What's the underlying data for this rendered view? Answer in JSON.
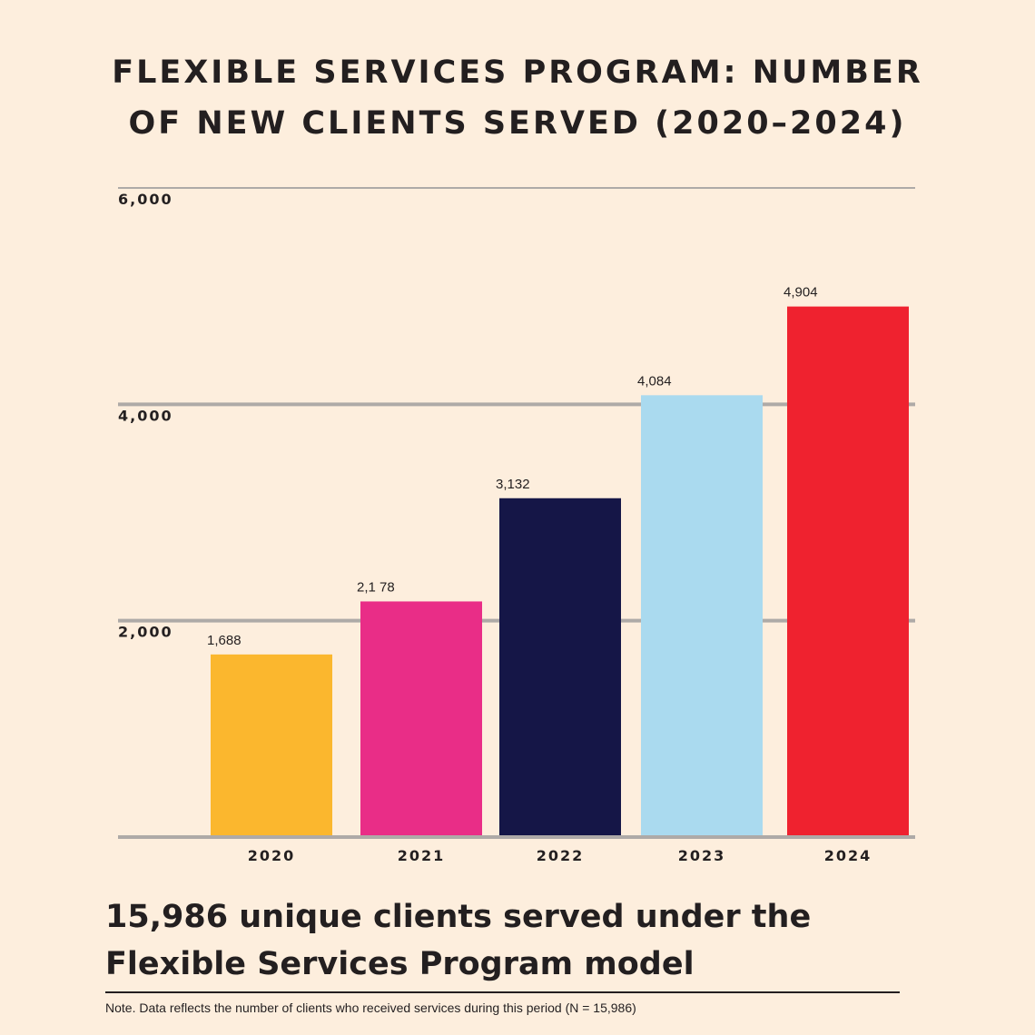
{
  "title": {
    "line1": "FLEXIBLE SERVICES PROGRAM: NUMBER",
    "line2": "OF NEW CLIENTS SERVED (2020–2024)"
  },
  "chart_data": {
    "type": "bar",
    "title": "FLEXIBLE SERVICES PROGRAM: NUMBER OF NEW CLIENTS SERVED (2020–2024)",
    "categories": [
      "2020",
      "2021",
      "2022",
      "2023",
      "2024"
    ],
    "values": [
      1688,
      2178,
      3132,
      4084,
      4904
    ],
    "value_labels": [
      "1,688",
      "2,1 78",
      "3,132",
      "4,084",
      "4,904"
    ],
    "bar_colors": [
      "#FBB72E",
      "#E92D87",
      "#151647",
      "#AADAEF",
      "#EF222F"
    ],
    "ylim": [
      0,
      6000
    ],
    "yticks": [
      2000,
      4000,
      6000
    ],
    "ytick_labels": [
      "2,000",
      "4,000",
      "6,000"
    ],
    "xlabel": "",
    "ylabel": "",
    "grid": true,
    "grid_color": "#AEAAA7"
  },
  "headline": {
    "line1": "15,986 unique clients served under the",
    "line2": "Flexible Services Program model"
  },
  "note": "Note. Data reflects the number of clients who received services during this period (N = 15,986)"
}
